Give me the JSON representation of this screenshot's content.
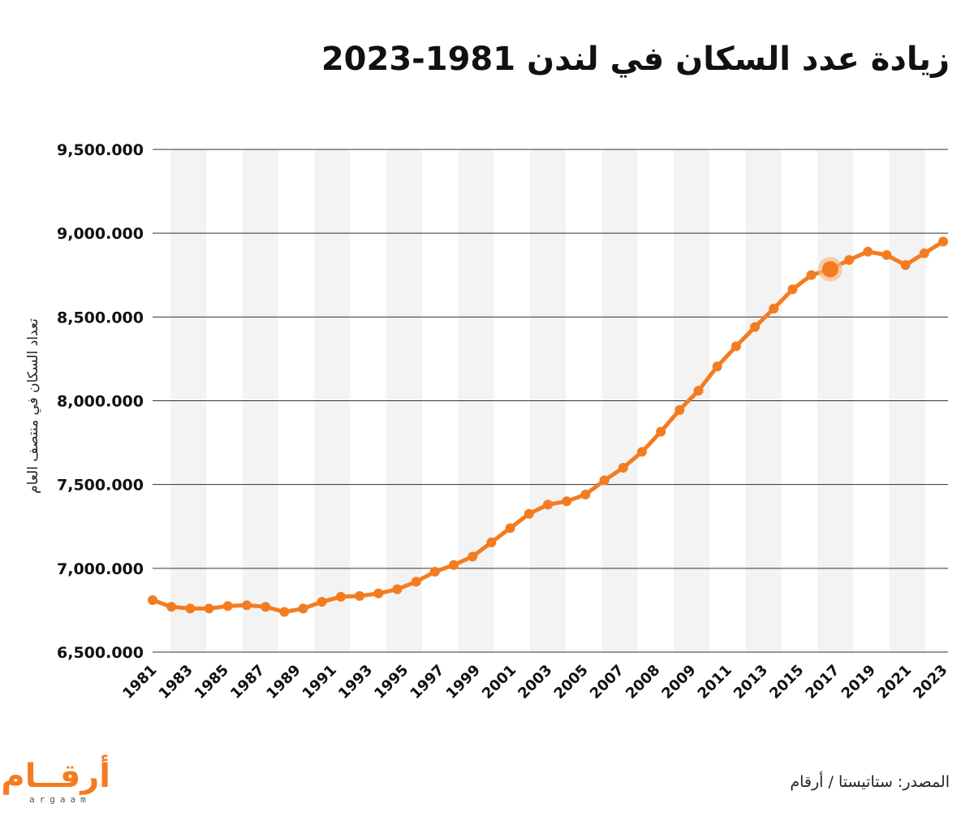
{
  "title": "زيادة عدد السكان في لندن 1981-2023",
  "source": "المصدر: ستاتيستا / أرقام",
  "logo": {
    "arabic": "أرقــام",
    "latin": "argaam"
  },
  "colors": {
    "line": "#f47c20",
    "highlight": "#f6b98a",
    "grid": "#333333",
    "band": "#f3f3f3",
    "text": "#111111"
  },
  "chart_data": {
    "type": "line",
    "title": "زيادة عدد السكان في لندن 1981-2023",
    "xlabel": "",
    "ylabel": "تعداد السكان في منتصف العام",
    "ylim": [
      6500000,
      9500000
    ],
    "yticks": [
      6500000,
      7000000,
      7500000,
      8000000,
      8500000,
      9000000,
      9500000
    ],
    "ytick_labels": [
      "6,500.000",
      "7,000.000",
      "7,500.000",
      "8,000.000",
      "8,500.000",
      "9,000.000",
      "9,500.000"
    ],
    "x_tick_labels": [
      "1981",
      "1983",
      "1985",
      "1987",
      "1989",
      "1991",
      "1993",
      "1995",
      "1997",
      "1999",
      "2001",
      "2003",
      "2005",
      "2007",
      "2008",
      "2009",
      "2011",
      "2013",
      "2015",
      "2017",
      "2019",
      "2021",
      "2023"
    ],
    "highlight_index": 36,
    "grid": true,
    "series": [
      {
        "values": [
          6810000,
          6770000,
          6760000,
          6760000,
          6775000,
          6780000,
          6770000,
          6740000,
          6760000,
          6800000,
          6830000,
          6835000,
          6850000,
          6875000,
          6920000,
          6980000,
          7020000,
          7070000,
          7155000,
          7240000,
          7325000,
          7380000,
          7400000,
          7440000,
          7525000,
          7600000,
          7695000,
          7815000,
          7945000,
          8060000,
          8205000,
          8325000,
          8440000,
          8550000,
          8665000,
          8750000,
          8785000,
          8840000,
          8890000,
          8870000,
          8810000,
          8880000,
          8950000
        ]
      }
    ]
  }
}
